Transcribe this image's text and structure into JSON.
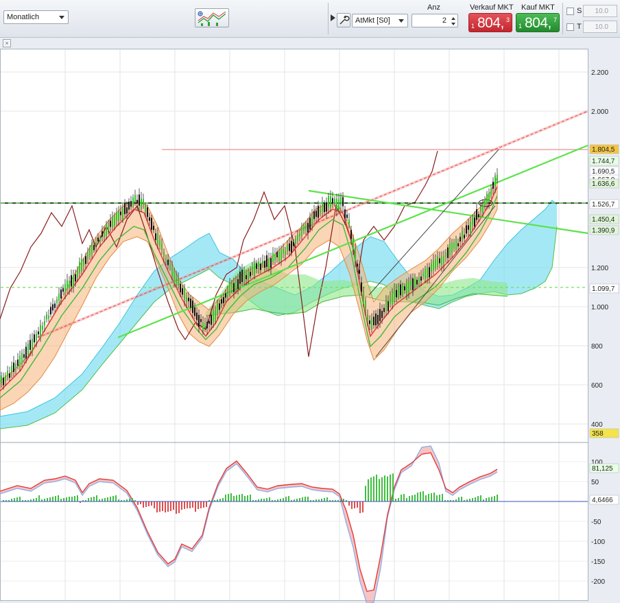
{
  "toolbar": {
    "timeframe": "Monatlich",
    "order_type": "AtMkt [S0]",
    "qty_label": "Anz",
    "qty_value": "2",
    "sell_label": "Verkauf MKT",
    "buy_label": "Kauf MKT",
    "sell_price_prefix": "1",
    "sell_price_main": "804,",
    "sell_price_sup": "3",
    "buy_price_prefix": "1",
    "buy_price_main": "804,",
    "buy_price_sup": "7",
    "stop_label": "S",
    "target_label": "T",
    "stop_value": "10.0",
    "target_value": "10.0"
  },
  "colors": {
    "sell": "#d9363e",
    "buy": "#2e9e3a",
    "cloud_cyan": "#74dcf0",
    "cloud_green": "#8ee88a",
    "envelope_orange": "#f5b27a",
    "trend_green": "#5be34a",
    "trend_red": "#e0443f"
  },
  "chart_data": [
    {
      "type": "line",
      "panel": "price",
      "y_ticks": [
        "2.200",
        "2.000",
        "1.200",
        "1.000",
        "800",
        "600",
        "400"
      ],
      "price_labels": [
        {
          "value": "1.804,5",
          "color": "#f4c542"
        },
        {
          "value": "1.744,7",
          "color": "#e7ffe3"
        },
        {
          "value": "1.690,5",
          "color": "#ffffff"
        },
        {
          "value": "1.667,0",
          "color": "#ffffff"
        },
        {
          "value": "1.636,6",
          "color": "#dff5d6"
        },
        {
          "value": "1.526,7",
          "color": "#ffffff"
        },
        {
          "value": "1.450,4",
          "color": "#dff5d6"
        },
        {
          "value": "1.390,9",
          "color": "#dff5d6"
        },
        {
          "value": "1.099,7",
          "color": "#ffffff"
        },
        {
          "value": "358",
          "color": "#f4e34a"
        }
      ],
      "horizontal_levels": [
        1804.5,
        1526.7,
        1099.7
      ],
      "ylim": [
        360,
        2320
      ]
    },
    {
      "type": "line",
      "panel": "oscillator",
      "y_ticks": [
        "100",
        "50",
        "-50",
        "-100",
        "-150",
        "-200"
      ],
      "value_labels": [
        {
          "value": "81,125",
          "color": "#e7ffe3"
        },
        {
          "value": "4,6466",
          "color": "#ffffff"
        }
      ],
      "ylim": [
        -220,
        130
      ]
    }
  ]
}
